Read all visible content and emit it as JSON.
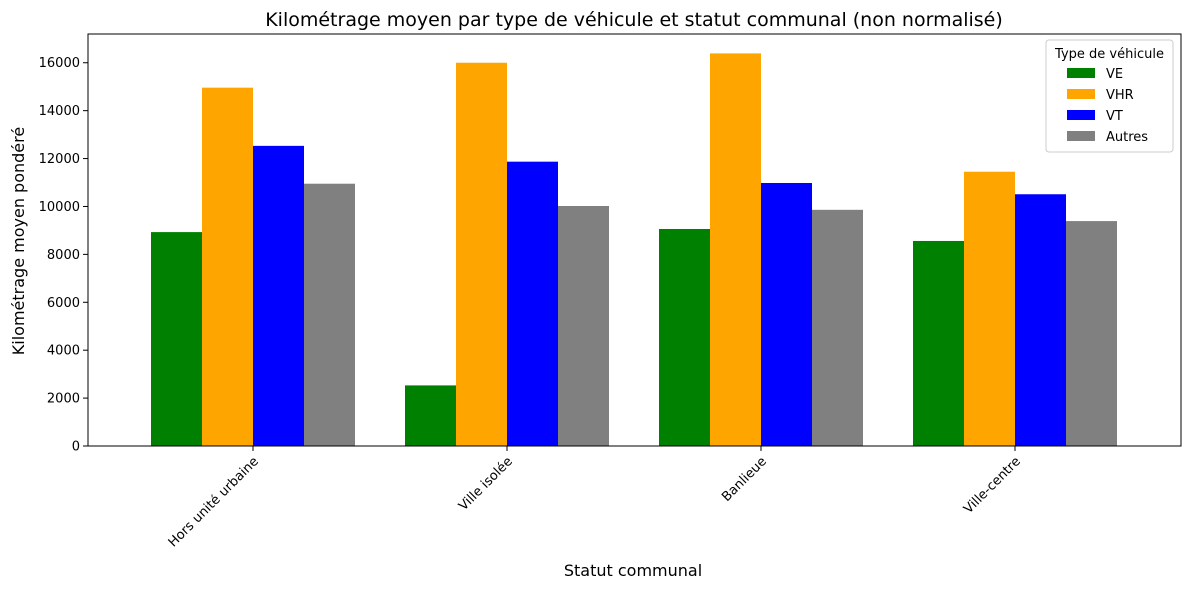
{
  "chart_data": {
    "type": "bar",
    "title": "Kilométrage moyen par type de véhicule et statut communal (non normalisé)",
    "xlabel": "Statut communal",
    "ylabel": "Kilométrage moyen pondéré",
    "categories": [
      "Hors unité urbaine",
      "Ville isolée",
      "Banlieue",
      "Ville-centre"
    ],
    "series": [
      {
        "name": "VE",
        "color": "#008000",
        "values": [
          8930,
          2530,
          9060,
          8560
        ]
      },
      {
        "name": "VHR",
        "color": "#ffa500",
        "values": [
          14960,
          16000,
          16390,
          11450
        ]
      },
      {
        "name": "VT",
        "color": "#0000ff",
        "values": [
          12530,
          11870,
          10980,
          10510
        ]
      },
      {
        "name": "Autres",
        "color": "#808080",
        "values": [
          10950,
          10020,
          9860,
          9390
        ]
      }
    ],
    "ylim": [
      0,
      17200
    ],
    "yticks": [
      0,
      2000,
      4000,
      6000,
      8000,
      10000,
      12000,
      14000,
      16000
    ],
    "legend": {
      "title": "Type de véhicule",
      "placement": "top-right"
    },
    "grid": false
  }
}
